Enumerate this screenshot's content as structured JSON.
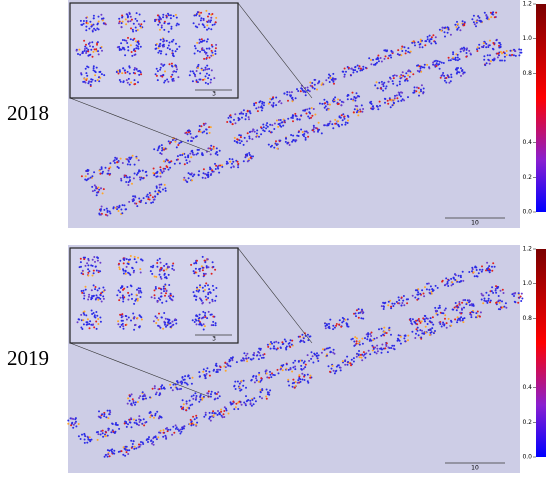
{
  "panels": [
    {
      "label": "2018",
      "colorbar": {
        "range": [
          0,
          1.2
        ],
        "ticks": [
          {
            "value": 0,
            "label": "0.0"
          },
          {
            "value": 0.2,
            "label": "0.2"
          },
          {
            "value": 0.4,
            "label": "0.4"
          },
          {
            "value": 0.8,
            "label": "0.8"
          },
          {
            "value": 1,
            "label": "1.0"
          },
          {
            "value": 1.2,
            "label": "1.2"
          }
        ]
      },
      "scale_bar": "10",
      "inset_scale_bar": "3"
    },
    {
      "label": "2019",
      "colorbar": {
        "range": [
          0,
          1.2
        ],
        "ticks": [
          {
            "value": 0,
            "label": "0.0"
          },
          {
            "value": 0.2,
            "label": "0.2"
          },
          {
            "value": 0.4,
            "label": "0.4"
          },
          {
            "value": 0.8,
            "label": "0.8"
          },
          {
            "value": 1,
            "label": "1.0"
          },
          {
            "value": 1.2,
            "label": "1.2"
          }
        ]
      },
      "scale_bar": "10",
      "inset_scale_bar": "3"
    }
  ]
}
